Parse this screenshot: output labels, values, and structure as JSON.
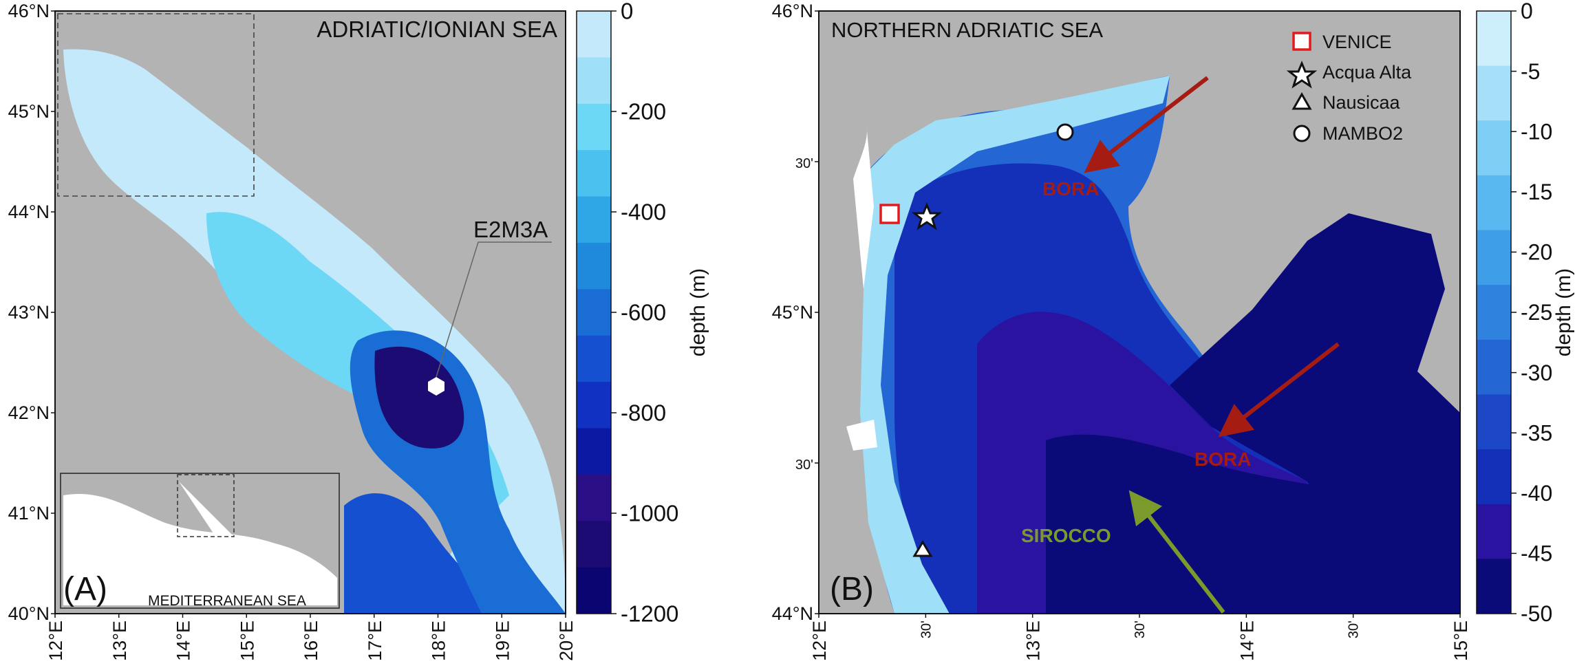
{
  "panel_a": {
    "title": "ADRIATIC/IONIAN SEA",
    "panel_label": "(A)",
    "station_label": "E2M3A",
    "inset_label": "MEDITERRANEAN SEA",
    "lat_labels": [
      "46°N",
      "45°N",
      "44°N",
      "43°N",
      "42°N",
      "41°N",
      "40°N"
    ],
    "lon_labels": [
      "12°E",
      "13°E",
      "14°E",
      "15°E",
      "16°E",
      "17°E",
      "18°E",
      "19°E",
      "20°E"
    ],
    "colorbar": {
      "label": "depth (m)",
      "tick_labels": [
        "0",
        "-200",
        "-400",
        "-600",
        "-800",
        "-1000",
        "-1200"
      ],
      "colors": [
        "#c4e9fa",
        "#9fe0f8",
        "#6dd7f6",
        "#4bc1f0",
        "#2fa7e6",
        "#1f8adb",
        "#1a6dd4",
        "#1450cf",
        "#1031c2",
        "#0c1aa3",
        "#2a0f86",
        "#1d0b74",
        "#0a0570"
      ]
    }
  },
  "panel_b": {
    "title": "NORTHERN ADRIATIC SEA",
    "panel_label": "(B)",
    "lat_labels": [
      "46°N",
      "30'",
      "45°N",
      "30'",
      "44°N"
    ],
    "lon_labels": [
      "12°E",
      "30'",
      "13°E",
      "30'",
      "14°E",
      "30'",
      "15°E"
    ],
    "legend": [
      {
        "label": "VENICE",
        "symbol": "red-square"
      },
      {
        "label": "Acqua Alta",
        "symbol": "star"
      },
      {
        "label": "Nausicaa",
        "symbol": "triangle"
      },
      {
        "label": "MAMBO2",
        "symbol": "circle"
      }
    ],
    "wind_labels": {
      "bora_1": "BORA",
      "bora_2": "BORA",
      "sirocco": "SIROCCO"
    },
    "wind_colors": {
      "bora": "#a51c12",
      "sirocco": "#7c9a2c"
    },
    "colorbar": {
      "label": "depth (m)",
      "tick_labels": [
        "0",
        "-5",
        "-10",
        "-15",
        "-20",
        "-25",
        "-30",
        "-35",
        "-40",
        "-45",
        "-50"
      ],
      "colors": [
        "#cdeefb",
        "#a6e0f8",
        "#7dcdf5",
        "#5ab8f0",
        "#3f9ee8",
        "#2f82dd",
        "#2466d4",
        "#1c48c8",
        "#1530b8",
        "#2a13a0",
        "#0a0a78"
      ]
    }
  },
  "land_color": "#b3b3b3"
}
